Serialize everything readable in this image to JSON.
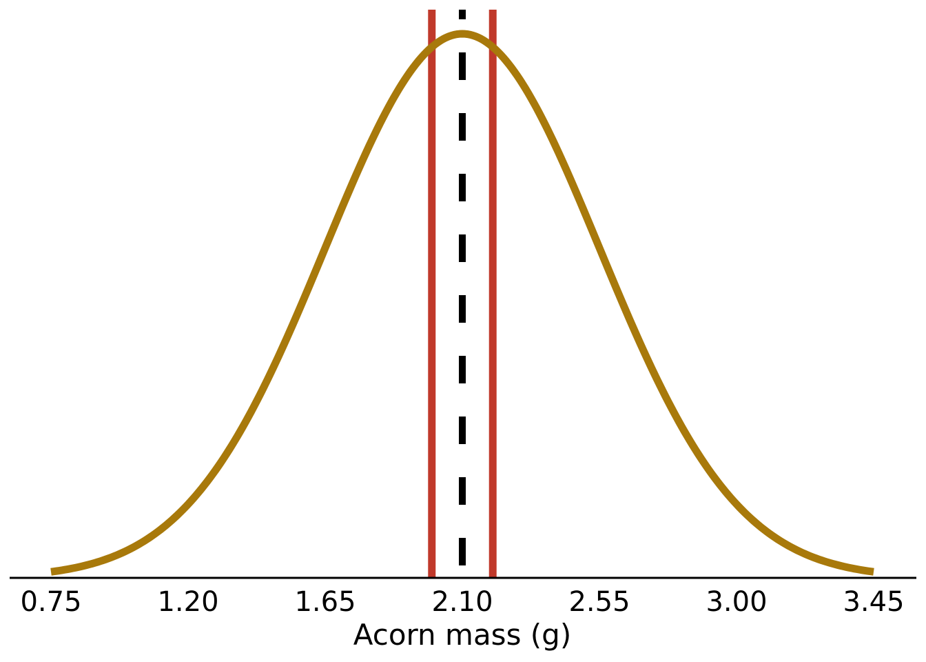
{
  "chart_data": {
    "type": "line",
    "title": "",
    "xlabel": "Acorn mass (g)",
    "ylabel": "",
    "xlim": [
      0.75,
      3.45
    ],
    "xticks": [
      "0.75",
      "1.20",
      "1.65",
      "2.10",
      "2.55",
      "3.00",
      "3.45"
    ],
    "grid": false,
    "legend": "none",
    "series": [
      {
        "kind": "density-curve",
        "distribution": "normal",
        "mean": 2.1,
        "sd": 0.45,
        "x_range": [
          0.75,
          3.45
        ],
        "color": "#a8790b"
      }
    ],
    "reference_lines": [
      {
        "kind": "solid-vertical",
        "x": 2.0,
        "color": "#c0392b"
      },
      {
        "kind": "solid-vertical",
        "x": 2.2,
        "color": "#c0392b"
      },
      {
        "kind": "dashed-vertical",
        "x": 2.1,
        "color": "#000000"
      }
    ]
  }
}
